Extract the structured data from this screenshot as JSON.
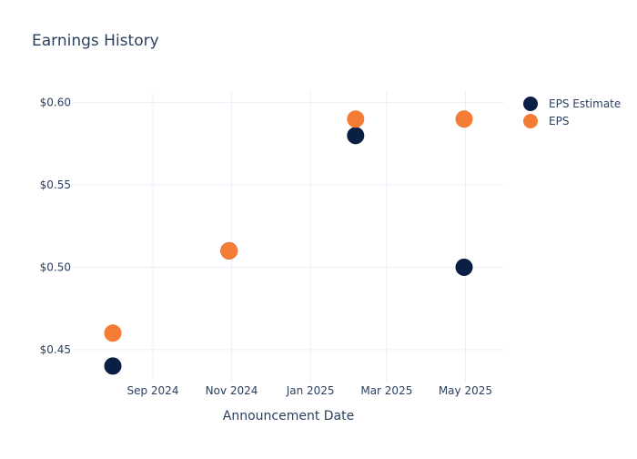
{
  "chart_data": {
    "type": "scatter",
    "title": "Earnings History",
    "xlabel": "Announcement Date",
    "ylabel": "",
    "x_axis_type": "date",
    "xlim": [
      "2024-07-01",
      "2025-05-31"
    ],
    "ylim": [
      0.43,
      0.607
    ],
    "x_ticks": [
      "2024-09-01",
      "2024-11-01",
      "2025-01-01",
      "2025-03-01",
      "2025-05-01"
    ],
    "x_tick_labels": [
      "Sep 2024",
      "Nov 2024",
      "Jan 2025",
      "Mar 2025",
      "May 2025"
    ],
    "y_ticks": [
      0.45,
      0.5,
      0.55,
      0.6
    ],
    "y_tick_labels": [
      "$0.45",
      "$0.50",
      "$0.55",
      "$0.60"
    ],
    "grid": true,
    "legend_position": "top-right",
    "series": [
      {
        "name": "EPS Estimate",
        "color": "#0a1f44",
        "points": [
          {
            "x": "2024-08-01",
            "y": 0.44
          },
          {
            "x": "2024-10-30",
            "y": 0.51
          },
          {
            "x": "2025-02-05",
            "y": 0.58
          },
          {
            "x": "2025-04-30",
            "y": 0.5
          }
        ]
      },
      {
        "name": "EPS",
        "color": "#f47c34",
        "points": [
          {
            "x": "2024-08-01",
            "y": 0.46
          },
          {
            "x": "2024-10-30",
            "y": 0.51
          },
          {
            "x": "2025-02-05",
            "y": 0.59
          },
          {
            "x": "2025-04-30",
            "y": 0.59
          }
        ]
      }
    ]
  },
  "colors": {
    "text": "#2a3f5f",
    "grid": "#ebf0f8"
  }
}
